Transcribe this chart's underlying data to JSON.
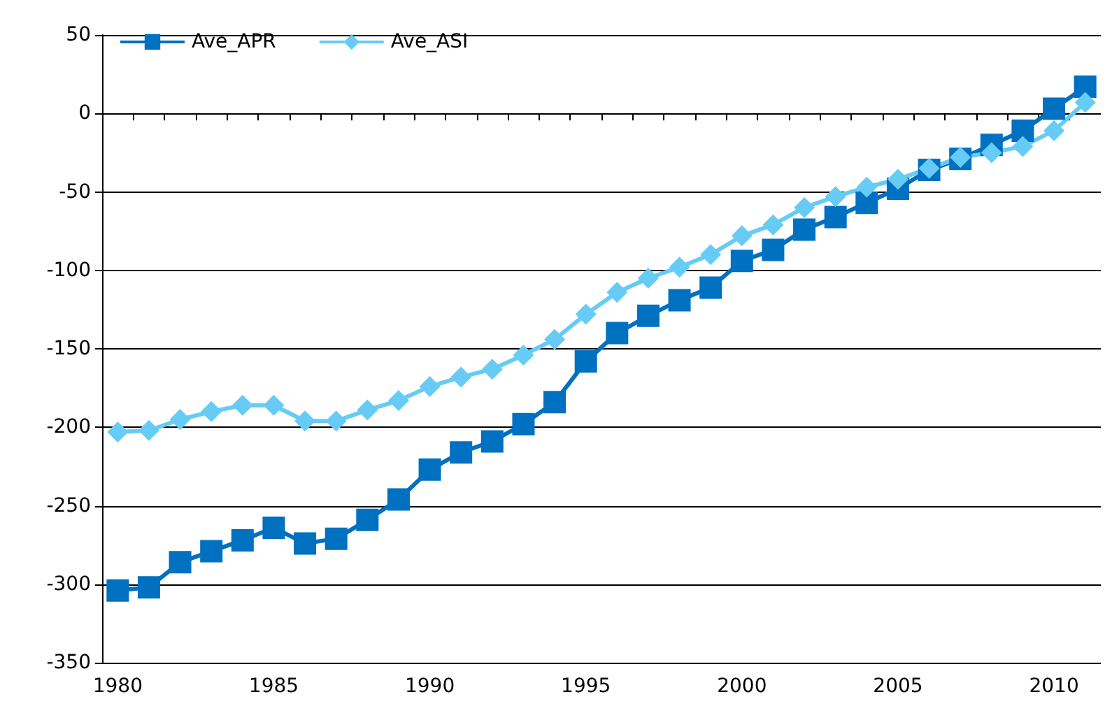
{
  "chart_data": {
    "type": "line",
    "categories": [
      "1980",
      null,
      null,
      null,
      null,
      "1985",
      null,
      null,
      null,
      null,
      "1990",
      null,
      null,
      null,
      null,
      "1995",
      null,
      null,
      null,
      null,
      "2000",
      null,
      null,
      null,
      null,
      "2005",
      null,
      null,
      null,
      null,
      "2010",
      null
    ],
    "series": [
      {
        "name": "Ave_APR",
        "color": "#0070c0",
        "marker": "square",
        "values": [
          -304,
          -302,
          -286,
          -279,
          -272,
          -264,
          -274,
          -271,
          -259,
          -246,
          -227,
          -216,
          -209,
          -198,
          -184,
          -158,
          -140,
          -129,
          -119,
          -111,
          -94,
          -87,
          -74,
          -66,
          -57,
          -48,
          -36,
          -29,
          -20,
          -11,
          3,
          17
        ]
      },
      {
        "name": "Ave_ASI",
        "color": "#66ccf5",
        "marker": "diamond",
        "values": [
          -203,
          -202,
          -195,
          -190,
          -186,
          -186,
          -196,
          -196,
          -189,
          -183,
          -174,
          -168,
          -163,
          -154,
          -144,
          -128,
          -114,
          -105,
          -98,
          -90,
          -78,
          -71,
          -60,
          -53,
          -47,
          -42,
          -35,
          -28,
          -25,
          -21,
          -11,
          7
        ]
      }
    ],
    "ylim": [
      -350,
      50
    ],
    "yticks": [
      -350,
      -300,
      -250,
      -200,
      -150,
      -100,
      -50,
      0,
      50
    ],
    "grid": "y",
    "legend": "top left",
    "line_style": "solid"
  }
}
